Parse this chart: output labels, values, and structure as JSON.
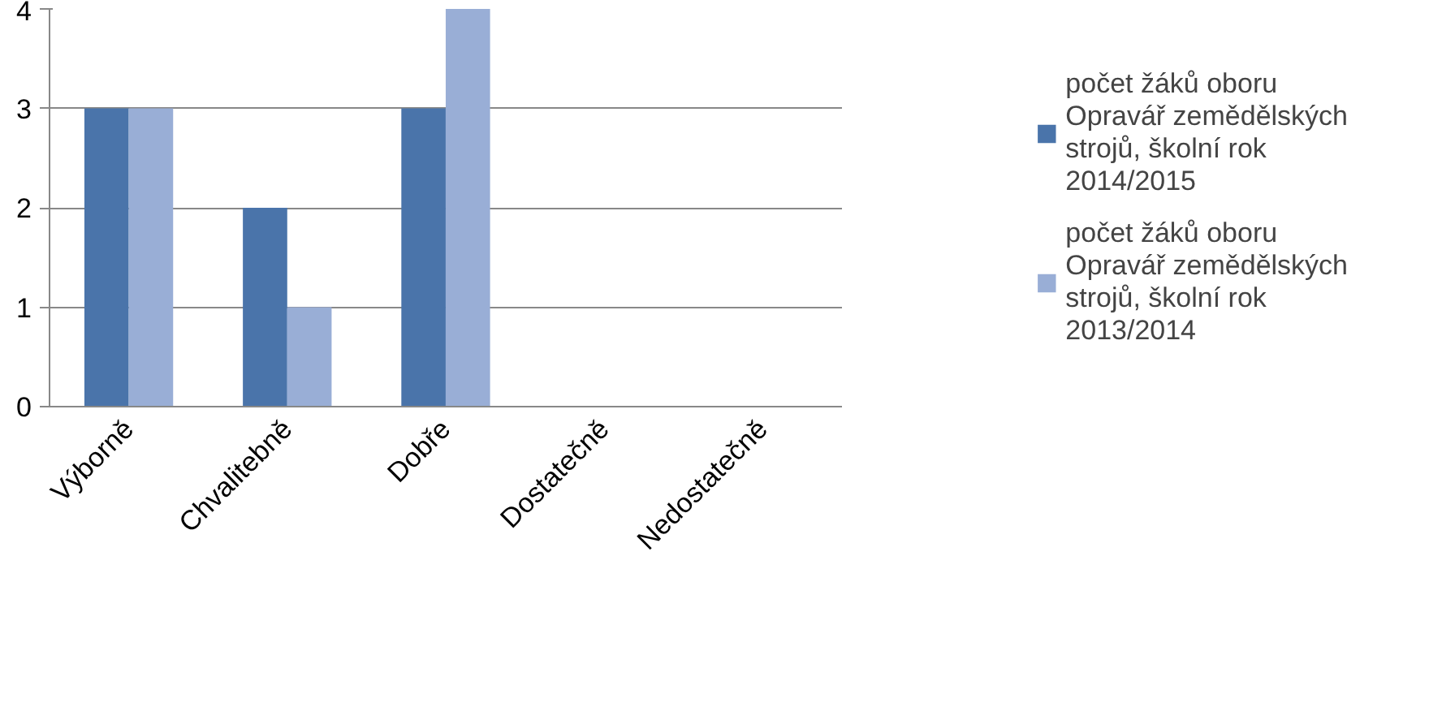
{
  "chart_data": {
    "type": "bar",
    "categories": [
      "Výborně",
      "Chvalitebně",
      "Dobře",
      "Dostatečně",
      "Nedostatečně"
    ],
    "series": [
      {
        "name": "počet žáků oboru Opravář zemědělských strojů, školní rok 2014/2015",
        "color": "#4a74aa",
        "values": [
          3,
          2,
          3,
          0,
          0
        ]
      },
      {
        "name": "počet žáků oboru Opravář zemědělských strojů, školní rok 2013/2014",
        "color": "#99aed6",
        "values": [
          3,
          1,
          4,
          0,
          0
        ]
      }
    ],
    "ylim": [
      0,
      4
    ],
    "yticks": [
      0,
      1,
      2,
      3,
      4
    ],
    "grid": "y",
    "legend": "right"
  }
}
